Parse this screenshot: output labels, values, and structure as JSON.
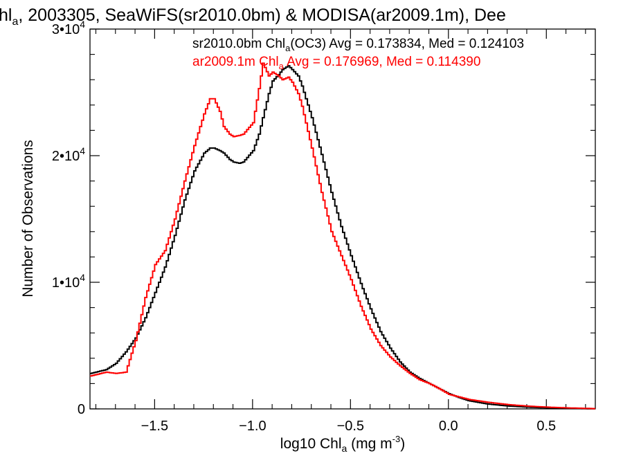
{
  "chart_data": {
    "type": "line",
    "title_parts": [
      "hl",
      "a",
      ", 2003305, SeaWiFS(sr2010.0bm) & MODISA(ar2009.1m), Dee"
    ],
    "xlabel_parts": [
      "log10 Chl",
      "a",
      " (mg m",
      "-3",
      ")"
    ],
    "ylabel": "Number of Observations",
    "xlim": [
      -1.83,
      0.75
    ],
    "ylim": [
      0,
      30000
    ],
    "x_ticks": [
      -1.5,
      -1.0,
      -0.5,
      0.0,
      0.5
    ],
    "x_tick_labels": [
      "−1.5",
      "−1.0",
      "−0.5",
      "0.0",
      "0.5"
    ],
    "y_ticks": [
      0,
      10000,
      20000,
      30000
    ],
    "y_tick_labels": [
      {
        "base": "0",
        "exp": ""
      },
      {
        "base": "1•10",
        "exp": "4"
      },
      {
        "base": "2•10",
        "exp": "4"
      },
      {
        "base": "3•10",
        "exp": "4"
      }
    ],
    "series": [
      {
        "legend_parts": [
          "sr2010.0bm Chl",
          "a",
          "(OC3) Avg = 0.173834, Med = 0.124103"
        ],
        "color": "#000000",
        "x": [
          -1.83,
          -1.75,
          -1.7,
          -1.65,
          -1.6,
          -1.55,
          -1.5,
          -1.45,
          -1.4,
          -1.35,
          -1.3,
          -1.25,
          -1.22,
          -1.2,
          -1.17,
          -1.15,
          -1.12,
          -1.1,
          -1.07,
          -1.05,
          -1.0,
          -0.97,
          -0.95,
          -0.92,
          -0.9,
          -0.87,
          -0.85,
          -0.82,
          -0.8,
          -0.77,
          -0.75,
          -0.7,
          -0.65,
          -0.6,
          -0.55,
          -0.5,
          -0.45,
          -0.4,
          -0.35,
          -0.3,
          -0.25,
          -0.2,
          -0.15,
          -0.1,
          -0.05,
          0.0,
          0.05,
          0.1,
          0.2,
          0.3,
          0.4,
          0.5,
          0.6,
          0.7,
          0.75
        ],
        "y": [
          2800,
          3100,
          3600,
          4500,
          5600,
          7200,
          9200,
          11200,
          13700,
          16500,
          18800,
          20200,
          20600,
          20600,
          20400,
          20200,
          19700,
          19500,
          19400,
          19500,
          20400,
          21700,
          23000,
          24900,
          25900,
          26400,
          26800,
          27100,
          26800,
          26300,
          25500,
          23000,
          20100,
          17100,
          14400,
          12100,
          9900,
          7900,
          6100,
          4800,
          3700,
          2900,
          2400,
          2000,
          1600,
          1200,
          900,
          650,
          380,
          230,
          140,
          80,
          40,
          20,
          10
        ]
      },
      {
        "legend_parts": [
          "ar2009.1m Chl",
          "a",
          " Avg = 0.176969, Med = 0.114390"
        ],
        "color": "#ff0000",
        "x": [
          -1.83,
          -1.75,
          -1.7,
          -1.65,
          -1.6,
          -1.55,
          -1.5,
          -1.45,
          -1.4,
          -1.35,
          -1.3,
          -1.25,
          -1.22,
          -1.2,
          -1.17,
          -1.15,
          -1.12,
          -1.1,
          -1.07,
          -1.05,
          -1.0,
          -0.97,
          -0.95,
          -0.92,
          -0.9,
          -0.87,
          -0.85,
          -0.82,
          -0.8,
          -0.77,
          -0.75,
          -0.7,
          -0.65,
          -0.6,
          -0.55,
          -0.5,
          -0.45,
          -0.4,
          -0.35,
          -0.3,
          -0.25,
          -0.2,
          -0.15,
          -0.1,
          -0.05,
          0.0,
          0.05,
          0.1,
          0.2,
          0.3,
          0.4,
          0.5,
          0.6,
          0.7,
          0.75
        ],
        "y": [
          2600,
          2900,
          2800,
          2900,
          5400,
          8800,
          11400,
          12500,
          15000,
          18000,
          20800,
          23300,
          24500,
          24500,
          23500,
          22300,
          21700,
          21500,
          21600,
          21700,
          22600,
          25300,
          27300,
          26300,
          26600,
          26300,
          26000,
          26200,
          25800,
          24900,
          23900,
          20600,
          17100,
          14000,
          12100,
          10200,
          8100,
          6300,
          5000,
          4100,
          3400,
          2800,
          2300,
          2000,
          1600,
          1150,
          950,
          750,
          520,
          340,
          220,
          140,
          80,
          40,
          20
        ]
      }
    ]
  }
}
